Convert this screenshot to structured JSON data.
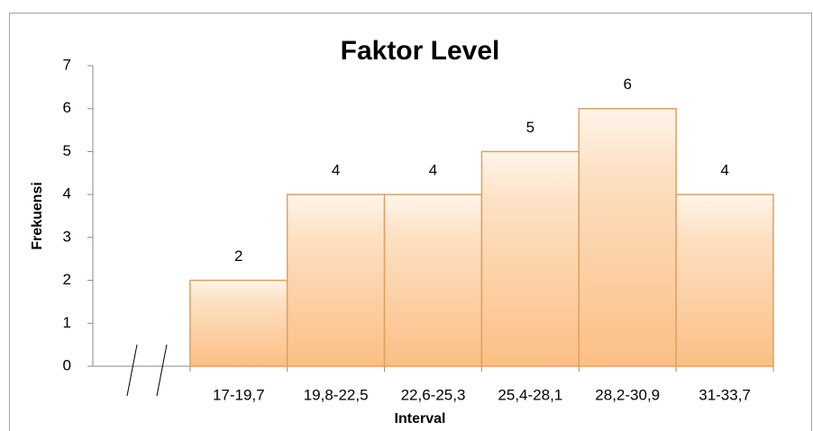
{
  "chart_data": {
    "type": "bar",
    "title": "Faktor Level",
    "x_label": "Interval",
    "y_label": "Frekuensi",
    "categories": [
      null,
      "17-19,7",
      "19,8-22,5",
      "22,6-25,3",
      "25,4-28,1",
      "28,2-30,9",
      "31-33,7"
    ],
    "values": [
      null,
      2,
      4,
      4,
      5,
      6,
      4
    ],
    "color": "#fbbf85",
    "ylim": [
      0,
      7
    ],
    "yticks": [
      0,
      1,
      2,
      3,
      4,
      5,
      6,
      7
    ],
    "grid": false
  }
}
